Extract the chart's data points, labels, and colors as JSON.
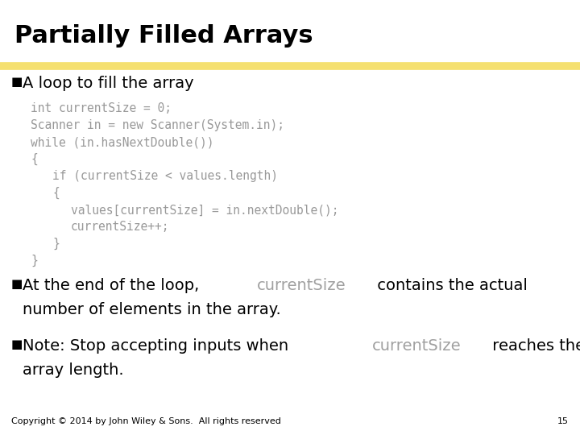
{
  "title": "Partially Filled Arrays",
  "title_color": "#000000",
  "title_fontsize": 22,
  "bg_color": "#ffffff",
  "gold_bar_color": "#f5e070",
  "bullet1_text": "A loop to fill the array",
  "bullet_fontsize": 14,
  "code_color": "#999999",
  "code_fontsize": 10.5,
  "code_lines": [
    {
      "text": "int currentSize = 0;",
      "indent": 0
    },
    {
      "text": "Scanner in = new Scanner(System.in);",
      "indent": 0
    },
    {
      "text": "while (in.hasNextDouble())",
      "indent": 0
    },
    {
      "text": "{",
      "indent": 0
    },
    {
      "text": "if (currentSize < values.length)",
      "indent": 1
    },
    {
      "text": "{",
      "indent": 1
    },
    {
      "text": "values[currentSize] = in.nextDouble();",
      "indent": 2
    },
    {
      "text": "currentSize++;",
      "indent": 2
    },
    {
      "text": "}",
      "indent": 1
    },
    {
      "text": "}",
      "indent": 0
    }
  ],
  "currentSize_color": "#a0a0a0",
  "bullet2_pre": "At the end of the loop, ",
  "bullet2_mid": "currentSize",
  "bullet2_post": " contains the actual",
  "bullet2_line2": "number of elements in the array.",
  "bullet3_pre": "Note: Stop accepting inputs when ",
  "bullet3_mid": "currentSize",
  "bullet3_post": " reaches the",
  "bullet3_line2": "array length.",
  "footer_text": "Copyright © 2014 by John Wiley & Sons.  All rights reserved",
  "footer_page": "15",
  "footer_fontsize": 8
}
